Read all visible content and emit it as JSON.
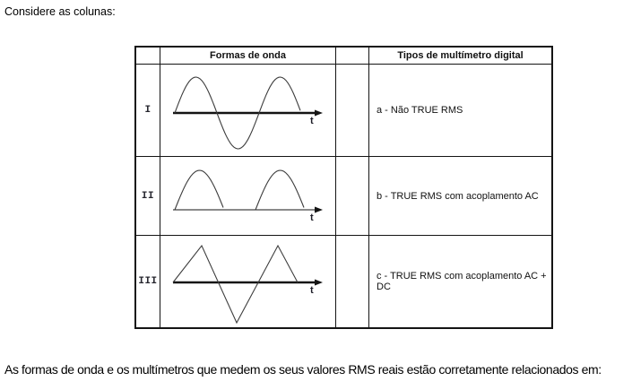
{
  "page": {
    "intro": "Considere as colunas:",
    "footer": "As formas de onda e os multímetros que medem os seus valores RMS reais estão corretamente relacionados em:"
  },
  "table": {
    "headers": {
      "waveform_col": "Formas de onda",
      "multimeter_col": "Tipos de multímetro digital"
    },
    "rows": [
      {
        "label": "I",
        "waveform": "sine",
        "axis_label": "t",
        "multimeter": "a - Não TRUE RMS"
      },
      {
        "label": "II",
        "waveform": "half-wave-rectified-sine",
        "axis_label": "t",
        "multimeter": "b - TRUE RMS com acoplamento AC"
      },
      {
        "label": "III",
        "waveform": "triangle",
        "axis_label": "t",
        "multimeter": "c - TRUE RMS com acoplamento AC + DC"
      }
    ],
    "colors": {
      "border": "#141414",
      "waveform_stroke": "#3d3d3d",
      "axis": "#141414",
      "text": "#000000"
    }
  }
}
